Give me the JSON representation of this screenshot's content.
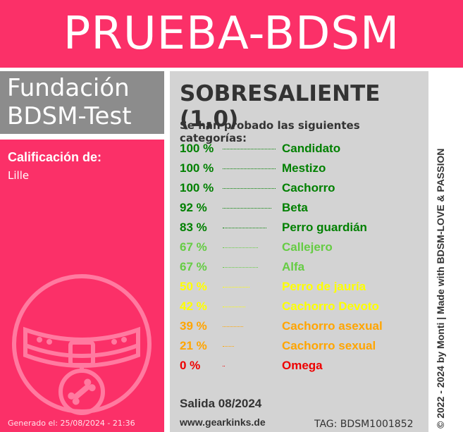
{
  "header": {
    "title": "PRUEBA-BDSM"
  },
  "logo": {
    "line1": "Fundación",
    "line2": "BDSM-Test"
  },
  "left_panel": {
    "rating_label": "Calificación de:",
    "name": "Lille",
    "generated": "Generado el: 25/08/2024 - 21:36",
    "emblem_icon": "dog-collar-bone-tag-icon"
  },
  "main": {
    "grade": "SOBRESALIENTE (1,0)",
    "subtitle": "Se han probado las siguientes categorías:",
    "results": [
      {
        "percent": "100 %",
        "value": 100,
        "category": "Candidato",
        "color": "#008000"
      },
      {
        "percent": "100 %",
        "value": 100,
        "category": "Mestizo",
        "color": "#008000"
      },
      {
        "percent": "100 %",
        "value": 100,
        "category": "Cachorro",
        "color": "#008000"
      },
      {
        "percent": "92 %",
        "value": 92,
        "category": "Beta",
        "color": "#008000"
      },
      {
        "percent": "83 %",
        "value": 83,
        "category": "Perro guardián",
        "color": "#008000"
      },
      {
        "percent": "67 %",
        "value": 67,
        "category": "Callejero",
        "color": "#66cc44"
      },
      {
        "percent": "67 %",
        "value": 67,
        "category": "Alfa",
        "color": "#66cc44"
      },
      {
        "percent": "50 %",
        "value": 50,
        "category": "Perro de jauría",
        "color": "#ffff00"
      },
      {
        "percent": "42 %",
        "value": 42,
        "category": "Cachorro Devoto",
        "color": "#ffff00"
      },
      {
        "percent": "39 %",
        "value": 39,
        "category": "Cachorro asexual",
        "color": "#ffa500"
      },
      {
        "percent": "21 %",
        "value": 21,
        "category": "Cachorro sexual",
        "color": "#ffa500"
      },
      {
        "percent": "0 %",
        "value": 0,
        "category": "Omega",
        "color": "#ee0000"
      }
    ],
    "issue": "Salida 08/2024",
    "website": "www.gearkinks.de",
    "tag": "TAG: BDSM1001852"
  },
  "credit": "© 2022 - 2024 by Monti | Made with BDSM-LOVE & PASSION",
  "colors": {
    "brand": "#fb3068",
    "logo_bg": "#8c8c8c",
    "panel_bg": "#d3d3d3"
  }
}
